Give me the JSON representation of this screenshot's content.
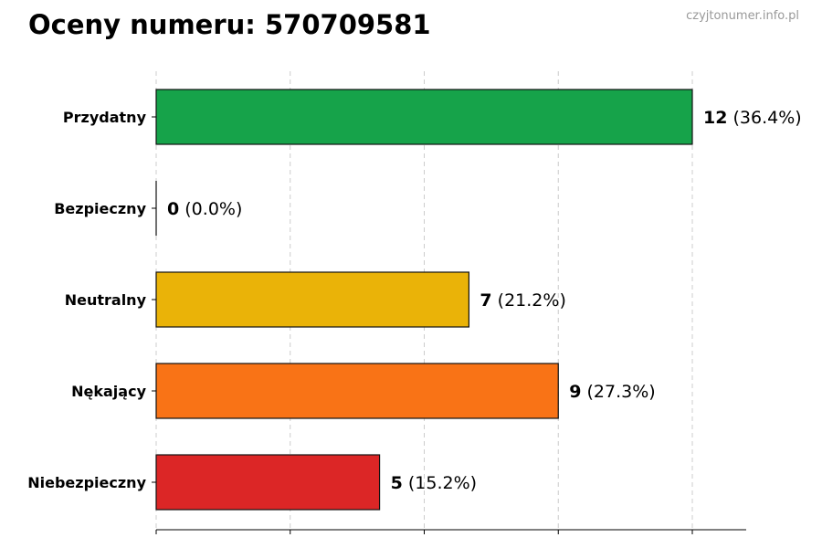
{
  "title": "Oceny numeru: 570709581",
  "watermark": "czyjtonumer.info.pl",
  "chart_data": {
    "type": "bar",
    "orientation": "horizontal",
    "categories": [
      "Przydatny",
      "Bezpieczny",
      "Neutralny",
      "Nękający",
      "Niebezpieczny"
    ],
    "values": [
      12,
      0,
      7,
      9,
      5
    ],
    "percent_labels": [
      "(36.4%)",
      "(0.0%)",
      "(21.2%)",
      "(27.3%)",
      "(15.2%)"
    ],
    "colors": [
      "#16a34a",
      "#16a34a",
      "#eab308",
      "#f97316",
      "#dc2626"
    ],
    "xlim": [
      0,
      13.2
    ],
    "grid": true,
    "grid_style": "dashed-vertical",
    "legend": false
  }
}
